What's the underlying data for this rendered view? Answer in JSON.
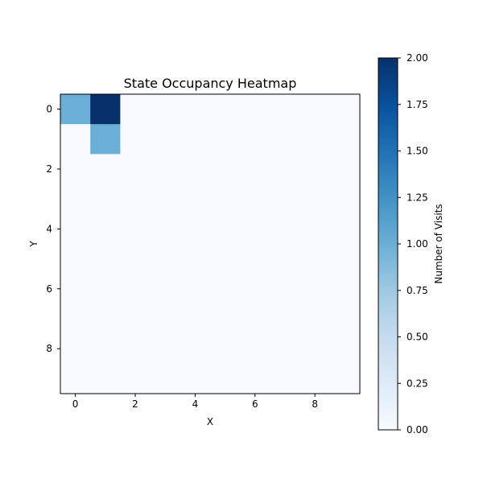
{
  "chart_data": {
    "type": "heatmap",
    "title": "State Occupancy Heatmap",
    "xlabel": "X",
    "ylabel": "Y",
    "grid_size": [
      10,
      10
    ],
    "xlim": [
      -0.5,
      9.5
    ],
    "ylim": [
      9.5,
      -0.5
    ],
    "x_ticks": [
      0,
      2,
      4,
      6,
      8
    ],
    "y_ticks": [
      0,
      2,
      4,
      6,
      8
    ],
    "values": [
      [
        1,
        2,
        0,
        0,
        0,
        0,
        0,
        0,
        0,
        0
      ],
      [
        0,
        1,
        0,
        0,
        0,
        0,
        0,
        0,
        0,
        0
      ],
      [
        0,
        0,
        0,
        0,
        0,
        0,
        0,
        0,
        0,
        0
      ],
      [
        0,
        0,
        0,
        0,
        0,
        0,
        0,
        0,
        0,
        0
      ],
      [
        0,
        0,
        0,
        0,
        0,
        0,
        0,
        0,
        0,
        0
      ],
      [
        0,
        0,
        0,
        0,
        0,
        0,
        0,
        0,
        0,
        0
      ],
      [
        0,
        0,
        0,
        0,
        0,
        0,
        0,
        0,
        0,
        0
      ],
      [
        0,
        0,
        0,
        0,
        0,
        0,
        0,
        0,
        0,
        0
      ],
      [
        0,
        0,
        0,
        0,
        0,
        0,
        0,
        0,
        0,
        0
      ],
      [
        0,
        0,
        0,
        0,
        0,
        0,
        0,
        0,
        0,
        0
      ]
    ],
    "colormap": "Blues",
    "colormap_stops": [
      "#f7fbff",
      "#deebf7",
      "#c6dbef",
      "#9ecae1",
      "#6baed6",
      "#4292c6",
      "#2171b5",
      "#08519c",
      "#08306b"
    ],
    "colorbar": {
      "label": "Number of Visits",
      "range": [
        0,
        2
      ],
      "ticks": [
        "0.00",
        "0.25",
        "0.50",
        "0.75",
        "1.00",
        "1.25",
        "1.50",
        "1.75",
        "2.00"
      ]
    }
  }
}
